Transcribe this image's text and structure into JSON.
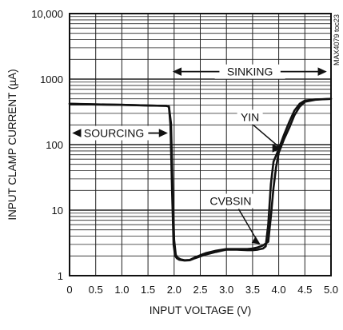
{
  "chart_data": {
    "type": "line",
    "xlabel": "INPUT VOLTAGE (V)",
    "ylabel": "INPUT CLAMP CURRENT (µA)",
    "y_scale": "log",
    "xlim": [
      0,
      5.0
    ],
    "ylim": [
      1,
      10000
    ],
    "grid": true,
    "x_ticks": [
      "0",
      "0.5",
      "1.0",
      "1.5",
      "2.0",
      "2.5",
      "3.0",
      "3.5",
      "4.0",
      "4.5",
      "5.0"
    ],
    "x_tick_values": [
      0,
      0.5,
      1.0,
      1.5,
      2.0,
      2.5,
      3.0,
      3.5,
      4.0,
      4.5,
      5.0
    ],
    "y_ticks": [
      "1",
      "10",
      "100",
      "1000",
      "10,000"
    ],
    "y_tick_values": [
      1,
      10,
      100,
      1000,
      10000
    ],
    "code_label": "MAX4079 toc23",
    "annotations": [
      {
        "text": "SOURCING",
        "x": 0.85,
        "y": 150,
        "arrows": "both"
      },
      {
        "text": "SINKING",
        "x": 3.45,
        "y": 1300,
        "arrows": "both"
      },
      {
        "text": "YIN",
        "x": 3.45,
        "y": 230
      },
      {
        "text": "CVBSIN",
        "x": 3.08,
        "y": 12
      }
    ],
    "series": [
      {
        "label": "YIN",
        "x": [
          0,
          0.5,
          1.0,
          1.5,
          1.85,
          1.9,
          1.93,
          1.96,
          1.99,
          2.02,
          2.05,
          2.1,
          2.2,
          2.3,
          2.4,
          2.6,
          2.8,
          3.0,
          3.2,
          3.4,
          3.5,
          3.6,
          3.7,
          3.75,
          3.8,
          3.85,
          3.9,
          4.0,
          4.1,
          4.2,
          4.3,
          4.4,
          4.5,
          4.7,
          4.9,
          5.0
        ],
        "y": [
          420,
          410,
          405,
          395,
          390,
          380,
          200,
          20,
          3,
          2.0,
          1.85,
          1.75,
          1.7,
          1.72,
          1.85,
          2.1,
          2.3,
          2.5,
          2.5,
          2.45,
          2.45,
          2.5,
          2.6,
          2.8,
          6,
          25,
          55,
          85,
          140,
          220,
          330,
          420,
          470,
          490,
          495,
          500
        ]
      },
      {
        "label": "CVBSIN",
        "x": [
          0,
          0.5,
          1.0,
          1.5,
          1.85,
          1.9,
          1.94,
          1.97,
          2.0,
          2.03,
          2.06,
          2.12,
          2.2,
          2.3,
          2.4,
          2.6,
          2.8,
          3.0,
          3.2,
          3.4,
          3.5,
          3.6,
          3.7,
          3.8,
          3.85,
          3.9,
          3.95,
          4.0,
          4.1,
          4.2,
          4.3,
          4.4,
          4.5,
          4.7,
          4.9,
          5.0
        ],
        "y": [
          420,
          412,
          405,
          396,
          390,
          382,
          210,
          25,
          3.5,
          2.1,
          1.9,
          1.78,
          1.72,
          1.74,
          1.9,
          2.2,
          2.4,
          2.55,
          2.55,
          2.55,
          2.6,
          2.7,
          2.9,
          3.3,
          8,
          22,
          45,
          75,
          120,
          180,
          280,
          380,
          450,
          485,
          495,
          500
        ]
      }
    ]
  }
}
